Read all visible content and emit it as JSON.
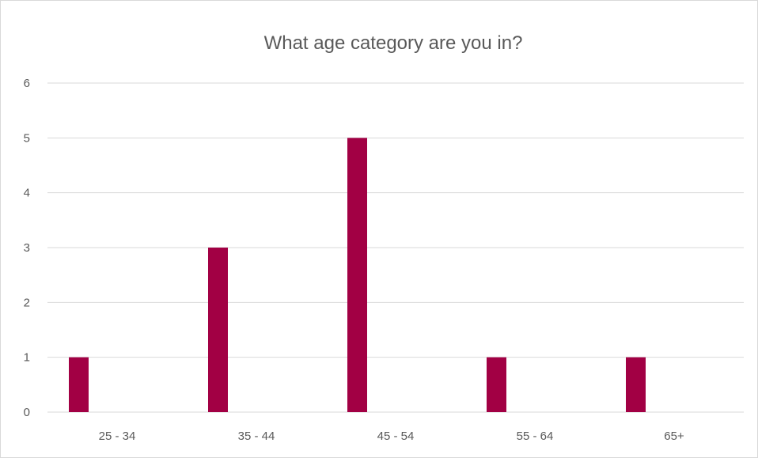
{
  "chart_data": {
    "type": "bar",
    "title": "What age category are you in?",
    "categories": [
      "25 - 34",
      "35 - 44",
      "45 - 54",
      "55 - 64",
      "65+"
    ],
    "values": [
      1,
      3,
      5,
      1,
      1
    ],
    "ylim": [
      0,
      6
    ],
    "yticks": [
      "0",
      "1",
      "2",
      "3",
      "4",
      "5",
      "6"
    ],
    "xlabel": "",
    "ylabel": "",
    "grid": true,
    "legend": "none",
    "bar_color": "#a20044",
    "grid_color": "#d9d9d9"
  }
}
